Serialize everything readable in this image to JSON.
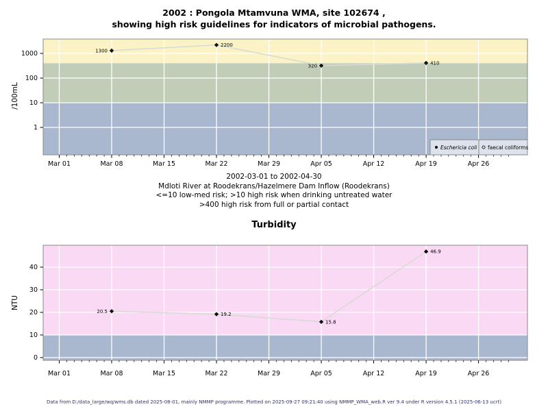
{
  "title": {
    "line1": "2002 : Pongola Mtamvuna WMA, site 102674 ,",
    "line2": "showing high risk guidelines for indicators of microbial pathogens."
  },
  "subtitle": {
    "lines": [
      "2002-03-01 to 2002-04-30",
      "Mdloti River at Roodekrans/Hazelmere Dam Inflow (Roodekrans)",
      "<=10 low-med risk; >10 high risk when drinking untreated water",
      ">400 high risk from full or partial contact"
    ]
  },
  "footer": "Data from D:/data_large/wq/wms.db dated 2025-08-01, mainly NMMP programme. Plotted on 2025-09-27 09:21:40 using NMMP_WMA_web.R ver 9.4 under R version 4.5.1 (2025-06-13 ucrt)",
  "colors": {
    "band_high_yellow": "#fbf3c5",
    "band_mid_green": "#c2cdb8",
    "band_low_blue": "#a9b8cf",
    "band_high_pink": "#fad9f4",
    "legend_bg": "#dde3ed",
    "plot_border": "#888888",
    "gridline": "#ffffff",
    "series_line": "#d7dbd3",
    "marker": "#111111",
    "axis": "#000000",
    "footer_text": "#333366"
  },
  "legend": {
    "items": [
      {
        "marker": "filled-dot",
        "label": "Eschericia coli",
        "italic": true
      },
      {
        "marker": "open-circle",
        "label": "faecal coliforms",
        "italic": false
      }
    ]
  },
  "chart_data": [
    {
      "type": "line",
      "name": "microbial-pathogens",
      "title": "",
      "ylabel": "/100mL",
      "yscale": "log",
      "ylim": [
        0.08,
        3800
      ],
      "y_ticks": [
        1,
        10,
        100,
        1000
      ],
      "y_tick_labels": [
        "1",
        "10",
        "100",
        "1000"
      ],
      "x_tick_days": [
        0,
        7,
        14,
        21,
        28,
        35,
        42,
        49,
        56
      ],
      "x_tick_labels": [
        "Mar 01",
        "Mar 08",
        "Mar 15",
        "Mar 22",
        "Mar 29",
        "Apr 05",
        "Apr 12",
        "Apr 19",
        "Apr 26"
      ],
      "x_range_days": 60,
      "grid": true,
      "bands": [
        {
          "gte": 400,
          "color": "#fbf3c5"
        },
        {
          "gte": 10,
          "lt": 400,
          "color": "#c2cdb8"
        },
        {
          "lt": 10,
          "color": "#a9b8cf"
        }
      ],
      "series": [
        {
          "name": "Eschericia coli",
          "points": [
            {
              "day": 7,
              "date": "Mar 08",
              "value": 1300,
              "label": "1300",
              "label_side": "left"
            },
            {
              "day": 21,
              "date": "Mar 22",
              "value": 2200,
              "label": "2200",
              "label_side": "right"
            },
            {
              "day": 35,
              "date": "Apr 05",
              "value": 320,
              "label": "320",
              "label_side": "left"
            },
            {
              "day": 49,
              "date": "Apr 19",
              "value": 410,
              "label": "410",
              "label_side": "right"
            }
          ]
        },
        {
          "name": "faecal coliforms",
          "points": []
        }
      ]
    },
    {
      "type": "line",
      "name": "turbidity",
      "title": "Turbidity",
      "ylabel": "NTU",
      "yscale": "linear",
      "ylim": [
        0,
        48
      ],
      "y_ticks": [
        0,
        10,
        20,
        30,
        40
      ],
      "y_tick_labels": [
        "0",
        "10",
        "20",
        "30",
        "40"
      ],
      "x_tick_days": [
        0,
        7,
        14,
        21,
        28,
        35,
        42,
        49,
        56
      ],
      "x_tick_labels": [
        "Mar 01",
        "Mar 08",
        "Mar 15",
        "Mar 22",
        "Mar 29",
        "Apr 05",
        "Apr 12",
        "Apr 19",
        "Apr 26"
      ],
      "x_range_days": 60,
      "grid": true,
      "bands": [
        {
          "gte": 10,
          "color": "#fad9f4"
        },
        {
          "lt": 10,
          "color": "#a9b8cf"
        }
      ],
      "series": [
        {
          "name": "Turbidity",
          "points": [
            {
              "day": 7,
              "date": "Mar 08",
              "value": 20.5,
              "label": "20.5",
              "label_side": "left"
            },
            {
              "day": 21,
              "date": "Mar 22",
              "value": 19.2,
              "label": "19.2",
              "label_side": "right"
            },
            {
              "day": 35,
              "date": "Apr 05",
              "value": 15.8,
              "label": "15.8",
              "label_side": "right"
            },
            {
              "day": 49,
              "date": "Apr 19",
              "value": 46.9,
              "label": "46.9",
              "label_side": "right"
            }
          ]
        }
      ]
    }
  ]
}
